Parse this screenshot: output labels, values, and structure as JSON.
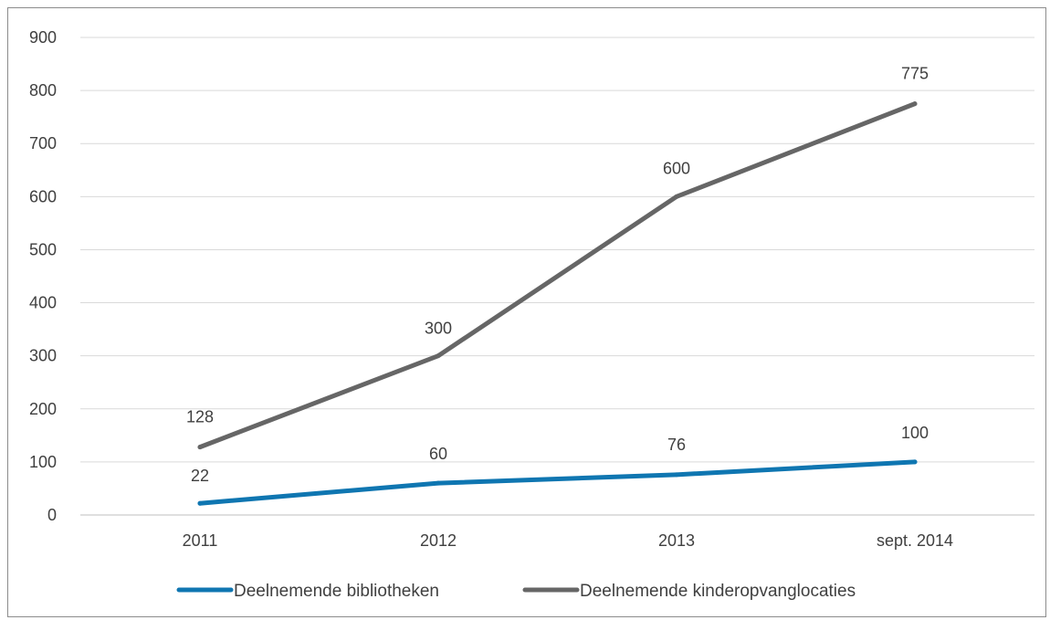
{
  "chart_data": {
    "type": "line",
    "categories": [
      "2011",
      "2012",
      "2013",
      "sept. 2014"
    ],
    "series": [
      {
        "name": "Deelnemende bibliotheken",
        "values": [
          22,
          60,
          76,
          100
        ],
        "color": "#0f76b1"
      },
      {
        "name": "Deelnemende kinderopvanglocaties",
        "values": [
          128,
          300,
          600,
          775
        ],
        "color": "#666666"
      }
    ],
    "ylim": [
      0,
      900
    ],
    "yticks": [
      0,
      100,
      200,
      300,
      400,
      500,
      600,
      700,
      800,
      900
    ],
    "grid": true,
    "legend_position": "bottom"
  }
}
